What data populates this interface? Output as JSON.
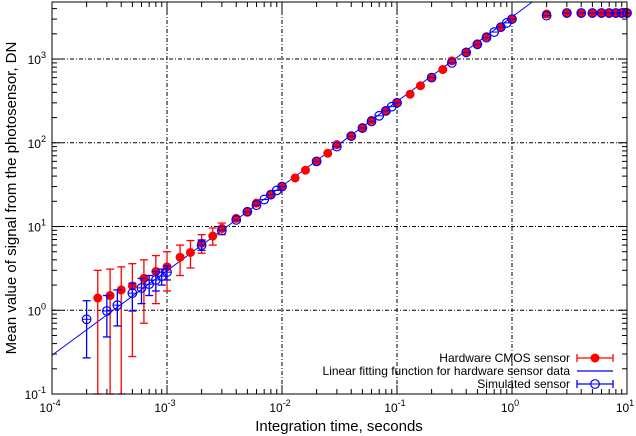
{
  "chart_data": {
    "type": "scatter",
    "title": "",
    "xlabel": "Integration time, seconds",
    "ylabel": "Mean value of signal from the photosensor, DN",
    "xscale": "log",
    "yscale": "log",
    "xlim": [
      0.0001,
      10
    ],
    "ylim": [
      0.1,
      4800
    ],
    "x_ticks": [
      {
        "base": "10",
        "exp": "-4",
        "value": 0.0001
      },
      {
        "base": "10",
        "exp": "-3",
        "value": 0.001
      },
      {
        "base": "10",
        "exp": "-2",
        "value": 0.01
      },
      {
        "base": "10",
        "exp": "-1",
        "value": 0.1
      },
      {
        "base": "10",
        "exp": "0",
        "value": 1
      },
      {
        "base": "10",
        "exp": "1",
        "value": 10
      }
    ],
    "y_ticks": [
      {
        "base": "10",
        "exp": "-1",
        "value": 0.1
      },
      {
        "base": "10",
        "exp": "0",
        "value": 1
      },
      {
        "base": "10",
        "exp": "1",
        "value": 10
      },
      {
        "base": "10",
        "exp": "2",
        "value": 100
      },
      {
        "base": "10",
        "exp": "3",
        "value": 1000
      }
    ],
    "grid": true,
    "legend_position": "lower right",
    "series": [
      {
        "name": "Hardware CMOS sensor",
        "style": "filled-circle with error bars",
        "color": "#ff0000",
        "points": [
          {
            "x": 0.00025,
            "y": 1.4,
            "ylo": 0.1,
            "yhi": 3.0
          },
          {
            "x": 0.00032,
            "y": 1.5,
            "ylo": 0.1,
            "yhi": 3.1
          },
          {
            "x": 0.0004,
            "y": 1.75,
            "ylo": 0.1,
            "yhi": 3.3
          },
          {
            "x": 0.0005,
            "y": 1.95,
            "ylo": 0.28,
            "yhi": 3.6
          },
          {
            "x": 0.00063,
            "y": 2.4,
            "ylo": 0.7,
            "yhi": 4.0
          },
          {
            "x": 0.0008,
            "y": 2.9,
            "ylo": 1.2,
            "yhi": 4.5
          },
          {
            "x": 0.001,
            "y": 3.3,
            "ylo": 1.7,
            "yhi": 5.0
          },
          {
            "x": 0.0013,
            "y": 4.3,
            "ylo": 2.6,
            "yhi": 6.0
          },
          {
            "x": 0.0016,
            "y": 4.9,
            "ylo": 3.2,
            "yhi": 6.8
          },
          {
            "x": 0.002,
            "y": 6.3,
            "ylo": 4.8,
            "yhi": 8.0
          },
          {
            "x": 0.0025,
            "y": 7.7,
            "ylo": 6.0,
            "yhi": 9.6
          },
          {
            "x": 0.003,
            "y": 9.5,
            "ylo": 8.0,
            "yhi": 11
          },
          {
            "x": 0.004,
            "y": 12.5
          },
          {
            "x": 0.005,
            "y": 15
          },
          {
            "x": 0.006,
            "y": 19
          },
          {
            "x": 0.008,
            "y": 24
          },
          {
            "x": 0.01,
            "y": 30
          },
          {
            "x": 0.013,
            "y": 38
          },
          {
            "x": 0.016,
            "y": 47
          },
          {
            "x": 0.02,
            "y": 60
          },
          {
            "x": 0.025,
            "y": 75
          },
          {
            "x": 0.03,
            "y": 95
          },
          {
            "x": 0.04,
            "y": 120
          },
          {
            "x": 0.05,
            "y": 150
          },
          {
            "x": 0.06,
            "y": 185
          },
          {
            "x": 0.08,
            "y": 240
          },
          {
            "x": 0.1,
            "y": 300
          },
          {
            "x": 0.13,
            "y": 380
          },
          {
            "x": 0.16,
            "y": 480
          },
          {
            "x": 0.2,
            "y": 600
          },
          {
            "x": 0.25,
            "y": 750
          },
          {
            "x": 0.3,
            "y": 950
          },
          {
            "x": 0.4,
            "y": 1200
          },
          {
            "x": 0.5,
            "y": 1500
          },
          {
            "x": 0.6,
            "y": 1850
          },
          {
            "x": 0.8,
            "y": 2400
          },
          {
            "x": 1.0,
            "y": 3000
          },
          {
            "x": 2.0,
            "y": 3450
          },
          {
            "x": 3.0,
            "y": 3500
          },
          {
            "x": 4.0,
            "y": 3500
          },
          {
            "x": 5.0,
            "y": 3500
          },
          {
            "x": 6.0,
            "y": 3500
          },
          {
            "x": 7.0,
            "y": 3500
          },
          {
            "x": 8.0,
            "y": 3500
          },
          {
            "x": 9.0,
            "y": 3500
          },
          {
            "x": 10.0,
            "y": 3500
          }
        ]
      },
      {
        "name": "Linear fitting function for hardware sensor data",
        "style": "line",
        "color": "#0000ff",
        "points": [
          {
            "x": 0.0001,
            "y": 0.29
          },
          {
            "x": 1.5,
            "y": 4800
          }
        ]
      },
      {
        "name": "Simulated sensor",
        "style": "open-circle with error bars",
        "color": "#0000ff",
        "points": [
          {
            "x": 0.0002,
            "y": 0.78,
            "ylo": 0.27,
            "yhi": 1.3
          },
          {
            "x": 0.0003,
            "y": 0.98,
            "ylo": 0.48,
            "yhi": 1.5
          },
          {
            "x": 0.00037,
            "y": 1.15,
            "ylo": 0.65,
            "yhi": 1.75
          },
          {
            "x": 0.0005,
            "y": 1.6,
            "ylo": 0.98,
            "yhi": 2.1
          },
          {
            "x": 0.0006,
            "y": 1.85,
            "ylo": 1.2,
            "yhi": 2.4
          },
          {
            "x": 0.0007,
            "y": 2.05,
            "ylo": 1.5,
            "yhi": 2.6
          },
          {
            "x": 0.0008,
            "y": 2.3,
            "ylo": 1.7,
            "yhi": 2.9
          },
          {
            "x": 0.0009,
            "y": 2.55,
            "ylo": 2.0,
            "yhi": 3.1
          },
          {
            "x": 0.001,
            "y": 2.85,
            "ylo": 2.3,
            "yhi": 3.4
          },
          {
            "x": 0.002,
            "y": 6.0,
            "ylo": 5.2,
            "yhi": 6.9
          },
          {
            "x": 0.003,
            "y": 9.0
          },
          {
            "x": 0.004,
            "y": 12
          },
          {
            "x": 0.005,
            "y": 15
          },
          {
            "x": 0.006,
            "y": 18
          },
          {
            "x": 0.007,
            "y": 21
          },
          {
            "x": 0.008,
            "y": 24
          },
          {
            "x": 0.009,
            "y": 27
          },
          {
            "x": 0.01,
            "y": 30
          },
          {
            "x": 0.02,
            "y": 60
          },
          {
            "x": 0.03,
            "y": 90
          },
          {
            "x": 0.04,
            "y": 120
          },
          {
            "x": 0.05,
            "y": 150
          },
          {
            "x": 0.06,
            "y": 180
          },
          {
            "x": 0.07,
            "y": 210
          },
          {
            "x": 0.08,
            "y": 240
          },
          {
            "x": 0.09,
            "y": 270
          },
          {
            "x": 0.1,
            "y": 300
          },
          {
            "x": 0.2,
            "y": 600
          },
          {
            "x": 0.3,
            "y": 900
          },
          {
            "x": 0.4,
            "y": 1200
          },
          {
            "x": 0.5,
            "y": 1500
          },
          {
            "x": 0.6,
            "y": 1800
          },
          {
            "x": 0.7,
            "y": 2100
          },
          {
            "x": 0.8,
            "y": 2400
          },
          {
            "x": 0.9,
            "y": 2700
          },
          {
            "x": 1.0,
            "y": 3000
          },
          {
            "x": 2.0,
            "y": 3300
          },
          {
            "x": 3.0,
            "y": 3550
          },
          {
            "x": 4.0,
            "y": 3550
          },
          {
            "x": 5.0,
            "y": 3550
          },
          {
            "x": 6.0,
            "y": 3550
          },
          {
            "x": 7.0,
            "y": 3550
          },
          {
            "x": 8.0,
            "y": 3550
          },
          {
            "x": 9.0,
            "y": 3550
          },
          {
            "x": 10.0,
            "y": 3550
          }
        ]
      }
    ]
  },
  "legend": {
    "items": [
      {
        "label": "Hardware CMOS sensor",
        "symbol": "filled-circle-errorbar",
        "color": "#ff0000"
      },
      {
        "label": "Linear fitting function for hardware sensor data",
        "symbol": "line",
        "color": "#0000ff"
      },
      {
        "label": "Simulated sensor",
        "symbol": "open-circle-errorbar",
        "color": "#0000ff"
      }
    ]
  },
  "colors": {
    "hardware": "#ff0000",
    "simulated": "#0000ff",
    "fit": "#0000ff",
    "grid": "#000000",
    "axis": "#000000"
  }
}
